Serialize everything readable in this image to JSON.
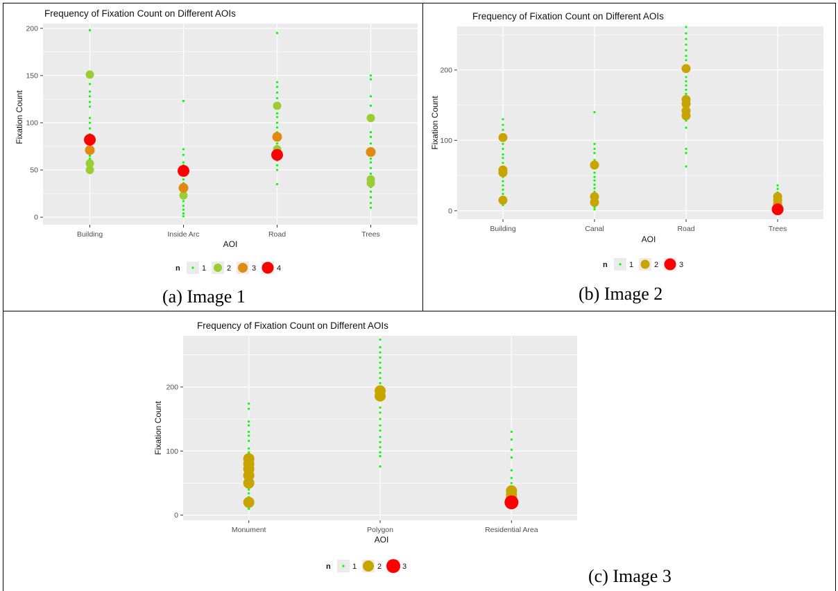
{
  "colors": {
    "panel_bg": "#ebebeb",
    "grid": "#ffffff",
    "n1": "#00ff00",
    "n2_image1": "#9acd32",
    "n3_image1": "#e08a14",
    "n2_image23": "#c8a400",
    "n_max": "#ff0000"
  },
  "captions": [
    "(a) Image 1",
    "(b) Image 2",
    "(c) Image 3"
  ],
  "chart_data": [
    {
      "type": "scatter",
      "title": "Frequency of Fixation Count on Different AOIs",
      "xlabel": "AOI",
      "ylabel": "Fixation Count",
      "categories": [
        "Building",
        "Inside Arc",
        "Road",
        "Trees"
      ],
      "ylim": [
        -8,
        205
      ],
      "yticks": [
        0,
        50,
        100,
        150,
        200
      ],
      "grid": true,
      "legend": {
        "title": "n",
        "position": "bottom",
        "entries": [
          "1",
          "2",
          "3",
          "4"
        ],
        "colors": [
          "#00ff00",
          "#9acd32",
          "#e08a14",
          "#ff0000"
        ]
      },
      "points": [
        {
          "x": "Building",
          "y": 198,
          "n": 1
        },
        {
          "x": "Building",
          "y": 141,
          "n": 1
        },
        {
          "x": "Building",
          "y": 133,
          "n": 1
        },
        {
          "x": "Building",
          "y": 128,
          "n": 1
        },
        {
          "x": "Building",
          "y": 122,
          "n": 1
        },
        {
          "x": "Building",
          "y": 117,
          "n": 1
        },
        {
          "x": "Building",
          "y": 105,
          "n": 1
        },
        {
          "x": "Building",
          "y": 100,
          "n": 1
        },
        {
          "x": "Building",
          "y": 94,
          "n": 1
        },
        {
          "x": "Building",
          "y": 88,
          "n": 1
        },
        {
          "x": "Building",
          "y": 65,
          "n": 1
        },
        {
          "x": "Building",
          "y": 62,
          "n": 1
        },
        {
          "x": "Building",
          "y": 151,
          "n": 2
        },
        {
          "x": "Building",
          "y": 57,
          "n": 2
        },
        {
          "x": "Building",
          "y": 50,
          "n": 2
        },
        {
          "x": "Building",
          "y": 71,
          "n": 3
        },
        {
          "x": "Building",
          "y": 82,
          "n": 4
        },
        {
          "x": "Inside Arc",
          "y": 123,
          "n": 1
        },
        {
          "x": "Inside Arc",
          "y": 72,
          "n": 1
        },
        {
          "x": "Inside Arc",
          "y": 66,
          "n": 1
        },
        {
          "x": "Inside Arc",
          "y": 58,
          "n": 1
        },
        {
          "x": "Inside Arc",
          "y": 55,
          "n": 1
        },
        {
          "x": "Inside Arc",
          "y": 52,
          "n": 1
        },
        {
          "x": "Inside Arc",
          "y": 40,
          "n": 1
        },
        {
          "x": "Inside Arc",
          "y": 36,
          "n": 1
        },
        {
          "x": "Inside Arc",
          "y": 27,
          "n": 1
        },
        {
          "x": "Inside Arc",
          "y": 17,
          "n": 1
        },
        {
          "x": "Inside Arc",
          "y": 12,
          "n": 1
        },
        {
          "x": "Inside Arc",
          "y": 8,
          "n": 1
        },
        {
          "x": "Inside Arc",
          "y": 4,
          "n": 1
        },
        {
          "x": "Inside Arc",
          "y": 1,
          "n": 1
        },
        {
          "x": "Inside Arc",
          "y": 23,
          "n": 2
        },
        {
          "x": "Inside Arc",
          "y": 31,
          "n": 3
        },
        {
          "x": "Inside Arc",
          "y": 49,
          "n": 4
        },
        {
          "x": "Road",
          "y": 195,
          "n": 1
        },
        {
          "x": "Road",
          "y": 143,
          "n": 1
        },
        {
          "x": "Road",
          "y": 138,
          "n": 1
        },
        {
          "x": "Road",
          "y": 132,
          "n": 1
        },
        {
          "x": "Road",
          "y": 126,
          "n": 1
        },
        {
          "x": "Road",
          "y": 110,
          "n": 1
        },
        {
          "x": "Road",
          "y": 106,
          "n": 1
        },
        {
          "x": "Road",
          "y": 100,
          "n": 1
        },
        {
          "x": "Road",
          "y": 95,
          "n": 1
        },
        {
          "x": "Road",
          "y": 90,
          "n": 1
        },
        {
          "x": "Road",
          "y": 78,
          "n": 1
        },
        {
          "x": "Road",
          "y": 60,
          "n": 1
        },
        {
          "x": "Road",
          "y": 55,
          "n": 1
        },
        {
          "x": "Road",
          "y": 50,
          "n": 1
        },
        {
          "x": "Road",
          "y": 35,
          "n": 1
        },
        {
          "x": "Road",
          "y": 118,
          "n": 2
        },
        {
          "x": "Road",
          "y": 72,
          "n": 2
        },
        {
          "x": "Road",
          "y": 85,
          "n": 3
        },
        {
          "x": "Road",
          "y": 66,
          "n": 4
        },
        {
          "x": "Trees",
          "y": 150,
          "n": 1
        },
        {
          "x": "Trees",
          "y": 146,
          "n": 1
        },
        {
          "x": "Trees",
          "y": 128,
          "n": 1
        },
        {
          "x": "Trees",
          "y": 118,
          "n": 1
        },
        {
          "x": "Trees",
          "y": 90,
          "n": 1
        },
        {
          "x": "Trees",
          "y": 85,
          "n": 1
        },
        {
          "x": "Trees",
          "y": 78,
          "n": 1
        },
        {
          "x": "Trees",
          "y": 62,
          "n": 1
        },
        {
          "x": "Trees",
          "y": 58,
          "n": 1
        },
        {
          "x": "Trees",
          "y": 52,
          "n": 1
        },
        {
          "x": "Trees",
          "y": 46,
          "n": 1
        },
        {
          "x": "Trees",
          "y": 32,
          "n": 1
        },
        {
          "x": "Trees",
          "y": 27,
          "n": 1
        },
        {
          "x": "Trees",
          "y": 21,
          "n": 1
        },
        {
          "x": "Trees",
          "y": 15,
          "n": 1
        },
        {
          "x": "Trees",
          "y": 10,
          "n": 1
        },
        {
          "x": "Trees",
          "y": 105,
          "n": 2
        },
        {
          "x": "Trees",
          "y": 40,
          "n": 2
        },
        {
          "x": "Trees",
          "y": 36,
          "n": 2
        },
        {
          "x": "Trees",
          "y": 69,
          "n": 3
        }
      ]
    },
    {
      "type": "scatter",
      "title": "Frequency of Fixation Count on Different AOIs",
      "xlabel": "AOI",
      "ylabel": "Fixation Count",
      "categories": [
        "Building",
        "Canal",
        "Road",
        "Trees"
      ],
      "ylim": [
        -12,
        262
      ],
      "yticks": [
        0,
        100,
        200
      ],
      "grid": true,
      "legend": {
        "title": "n",
        "position": "bottom",
        "entries": [
          "1",
          "2",
          "3"
        ],
        "colors": [
          "#00ff00",
          "#c8a400",
          "#ff0000"
        ]
      },
      "points": [
        {
          "x": "Building",
          "y": 130,
          "n": 1
        },
        {
          "x": "Building",
          "y": 122,
          "n": 1
        },
        {
          "x": "Building",
          "y": 115,
          "n": 1
        },
        {
          "x": "Building",
          "y": 95,
          "n": 1
        },
        {
          "x": "Building",
          "y": 88,
          "n": 1
        },
        {
          "x": "Building",
          "y": 80,
          "n": 1
        },
        {
          "x": "Building",
          "y": 75,
          "n": 1
        },
        {
          "x": "Building",
          "y": 68,
          "n": 1
        },
        {
          "x": "Building",
          "y": 62,
          "n": 1
        },
        {
          "x": "Building",
          "y": 48,
          "n": 1
        },
        {
          "x": "Building",
          "y": 42,
          "n": 1
        },
        {
          "x": "Building",
          "y": 36,
          "n": 1
        },
        {
          "x": "Building",
          "y": 30,
          "n": 1
        },
        {
          "x": "Building",
          "y": 24,
          "n": 1
        },
        {
          "x": "Building",
          "y": 8,
          "n": 1
        },
        {
          "x": "Building",
          "y": 104,
          "n": 2
        },
        {
          "x": "Building",
          "y": 58,
          "n": 2
        },
        {
          "x": "Building",
          "y": 54,
          "n": 2
        },
        {
          "x": "Building",
          "y": 15,
          "n": 2
        },
        {
          "x": "Canal",
          "y": 140,
          "n": 1
        },
        {
          "x": "Canal",
          "y": 95,
          "n": 1
        },
        {
          "x": "Canal",
          "y": 88,
          "n": 1
        },
        {
          "x": "Canal",
          "y": 82,
          "n": 1
        },
        {
          "x": "Canal",
          "y": 72,
          "n": 1
        },
        {
          "x": "Canal",
          "y": 60,
          "n": 1
        },
        {
          "x": "Canal",
          "y": 54,
          "n": 1
        },
        {
          "x": "Canal",
          "y": 48,
          "n": 1
        },
        {
          "x": "Canal",
          "y": 43,
          "n": 1
        },
        {
          "x": "Canal",
          "y": 37,
          "n": 1
        },
        {
          "x": "Canal",
          "y": 32,
          "n": 1
        },
        {
          "x": "Canal",
          "y": 27,
          "n": 1
        },
        {
          "x": "Canal",
          "y": 5,
          "n": 1
        },
        {
          "x": "Canal",
          "y": 2,
          "n": 1
        },
        {
          "x": "Canal",
          "y": 65,
          "n": 2
        },
        {
          "x": "Canal",
          "y": 20,
          "n": 2
        },
        {
          "x": "Canal",
          "y": 12,
          "n": 2
        },
        {
          "x": "Road",
          "y": 261,
          "n": 1
        },
        {
          "x": "Road",
          "y": 252,
          "n": 1
        },
        {
          "x": "Road",
          "y": 244,
          "n": 1
        },
        {
          "x": "Road",
          "y": 236,
          "n": 1
        },
        {
          "x": "Road",
          "y": 228,
          "n": 1
        },
        {
          "x": "Road",
          "y": 220,
          "n": 1
        },
        {
          "x": "Road",
          "y": 214,
          "n": 1
        },
        {
          "x": "Road",
          "y": 190,
          "n": 1
        },
        {
          "x": "Road",
          "y": 184,
          "n": 1
        },
        {
          "x": "Road",
          "y": 178,
          "n": 1
        },
        {
          "x": "Road",
          "y": 172,
          "n": 1
        },
        {
          "x": "Road",
          "y": 166,
          "n": 1
        },
        {
          "x": "Road",
          "y": 128,
          "n": 1
        },
        {
          "x": "Road",
          "y": 118,
          "n": 1
        },
        {
          "x": "Road",
          "y": 88,
          "n": 1
        },
        {
          "x": "Road",
          "y": 82,
          "n": 1
        },
        {
          "x": "Road",
          "y": 63,
          "n": 1
        },
        {
          "x": "Road",
          "y": 202,
          "n": 2
        },
        {
          "x": "Road",
          "y": 158,
          "n": 2
        },
        {
          "x": "Road",
          "y": 152,
          "n": 2
        },
        {
          "x": "Road",
          "y": 142,
          "n": 2
        },
        {
          "x": "Road",
          "y": 135,
          "n": 2
        },
        {
          "x": "Trees",
          "y": 36,
          "n": 1
        },
        {
          "x": "Trees",
          "y": 31,
          "n": 1
        },
        {
          "x": "Trees",
          "y": 26,
          "n": 1
        },
        {
          "x": "Trees",
          "y": 24,
          "n": 1
        },
        {
          "x": "Trees",
          "y": 20,
          "n": 2
        },
        {
          "x": "Trees",
          "y": 15,
          "n": 2
        },
        {
          "x": "Trees",
          "y": 10,
          "n": 2
        },
        {
          "x": "Trees",
          "y": 7,
          "n": 2
        },
        {
          "x": "Trees",
          "y": 2,
          "n": 3
        }
      ]
    },
    {
      "type": "scatter",
      "title": "Frequency of Fixation Count on Different AOIs",
      "xlabel": "AOI",
      "ylabel": "Fixation Count",
      "categories": [
        "Monument",
        "Polygon",
        "Residential Area"
      ],
      "ylim": [
        -8,
        280
      ],
      "yticks": [
        0,
        100,
        200
      ],
      "grid": true,
      "legend": {
        "title": "n",
        "position": "bottom",
        "entries": [
          "1",
          "2",
          "3"
        ],
        "colors": [
          "#00ff00",
          "#c8a400",
          "#ff0000"
        ]
      },
      "points": [
        {
          "x": "Monument",
          "y": 174,
          "n": 1
        },
        {
          "x": "Monument",
          "y": 166,
          "n": 1
        },
        {
          "x": "Monument",
          "y": 146,
          "n": 1
        },
        {
          "x": "Monument",
          "y": 140,
          "n": 1
        },
        {
          "x": "Monument",
          "y": 130,
          "n": 1
        },
        {
          "x": "Monument",
          "y": 124,
          "n": 1
        },
        {
          "x": "Monument",
          "y": 116,
          "n": 1
        },
        {
          "x": "Monument",
          "y": 104,
          "n": 1
        },
        {
          "x": "Monument",
          "y": 98,
          "n": 1
        },
        {
          "x": "Monument",
          "y": 94,
          "n": 1
        },
        {
          "x": "Monument",
          "y": 40,
          "n": 1
        },
        {
          "x": "Monument",
          "y": 34,
          "n": 1
        },
        {
          "x": "Monument",
          "y": 28,
          "n": 1
        },
        {
          "x": "Monument",
          "y": 10,
          "n": 1
        },
        {
          "x": "Monument",
          "y": 88,
          "n": 2
        },
        {
          "x": "Monument",
          "y": 80,
          "n": 2
        },
        {
          "x": "Monument",
          "y": 72,
          "n": 2
        },
        {
          "x": "Monument",
          "y": 62,
          "n": 2
        },
        {
          "x": "Monument",
          "y": 50,
          "n": 2
        },
        {
          "x": "Monument",
          "y": 20,
          "n": 2
        },
        {
          "x": "Polygon",
          "y": 274,
          "n": 1
        },
        {
          "x": "Polygon",
          "y": 262,
          "n": 1
        },
        {
          "x": "Polygon",
          "y": 254,
          "n": 1
        },
        {
          "x": "Polygon",
          "y": 246,
          "n": 1
        },
        {
          "x": "Polygon",
          "y": 238,
          "n": 1
        },
        {
          "x": "Polygon",
          "y": 230,
          "n": 1
        },
        {
          "x": "Polygon",
          "y": 222,
          "n": 1
        },
        {
          "x": "Polygon",
          "y": 214,
          "n": 1
        },
        {
          "x": "Polygon",
          "y": 206,
          "n": 1
        },
        {
          "x": "Polygon",
          "y": 168,
          "n": 1
        },
        {
          "x": "Polygon",
          "y": 160,
          "n": 1
        },
        {
          "x": "Polygon",
          "y": 150,
          "n": 1
        },
        {
          "x": "Polygon",
          "y": 140,
          "n": 1
        },
        {
          "x": "Polygon",
          "y": 132,
          "n": 1
        },
        {
          "x": "Polygon",
          "y": 122,
          "n": 1
        },
        {
          "x": "Polygon",
          "y": 114,
          "n": 1
        },
        {
          "x": "Polygon",
          "y": 106,
          "n": 1
        },
        {
          "x": "Polygon",
          "y": 98,
          "n": 1
        },
        {
          "x": "Polygon",
          "y": 92,
          "n": 1
        },
        {
          "x": "Polygon",
          "y": 76,
          "n": 1
        },
        {
          "x": "Polygon",
          "y": 194,
          "n": 2
        },
        {
          "x": "Polygon",
          "y": 186,
          "n": 2
        },
        {
          "x": "Residential Area",
          "y": 130,
          "n": 1
        },
        {
          "x": "Residential Area",
          "y": 118,
          "n": 1
        },
        {
          "x": "Residential Area",
          "y": 102,
          "n": 1
        },
        {
          "x": "Residential Area",
          "y": 90,
          "n": 1
        },
        {
          "x": "Residential Area",
          "y": 70,
          "n": 1
        },
        {
          "x": "Residential Area",
          "y": 58,
          "n": 1
        },
        {
          "x": "Residential Area",
          "y": 50,
          "n": 1
        },
        {
          "x": "Residential Area",
          "y": 44,
          "n": 1
        },
        {
          "x": "Residential Area",
          "y": 38,
          "n": 2
        },
        {
          "x": "Residential Area",
          "y": 32,
          "n": 2
        },
        {
          "x": "Residential Area",
          "y": 27,
          "n": 2
        },
        {
          "x": "Residential Area",
          "y": 20,
          "n": 3
        }
      ]
    }
  ]
}
